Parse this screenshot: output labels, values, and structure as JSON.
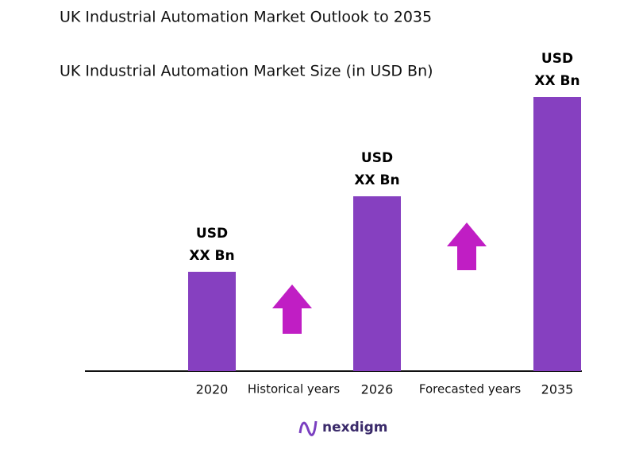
{
  "chart_data": {
    "type": "bar",
    "title": "UK Industrial Automation Market Outlook to 2035",
    "subtitle": "UK Industrial Automation Market Size (in USD Bn)",
    "categories": [
      "2020",
      "2026",
      "2035"
    ],
    "values": [
      125,
      220,
      345
    ],
    "value_labels": [
      "USD XX Bn",
      "USD XX Bn",
      "USD XX Bn"
    ],
    "color": "#8640c0",
    "ylim": [
      0,
      400
    ],
    "annotations": [
      "Historical years",
      "Forecasted years"
    ],
    "logo": "nexdigm"
  }
}
